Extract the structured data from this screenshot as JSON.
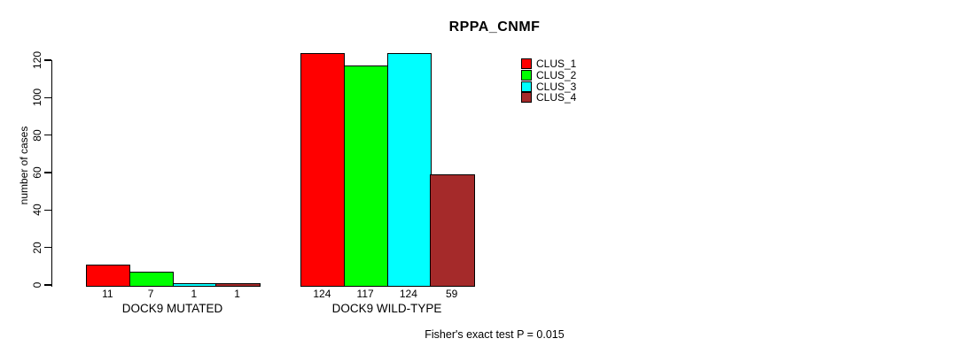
{
  "title": "RPPA_CNMF",
  "footer": "Fisher's exact test P = 0.015",
  "chart_data": {
    "type": "bar",
    "title": "RPPA_CNMF",
    "xlabel": "",
    "ylabel": "number of cases",
    "ylim": [
      0,
      130
    ],
    "yticks": [
      0,
      20,
      40,
      60,
      80,
      100,
      120
    ],
    "grid": false,
    "legend_position": "top-right",
    "bar_value_labels_shown": true,
    "categories": [
      "DOCK9 MUTATED",
      "DOCK9 WILD-TYPE"
    ],
    "series": [
      {
        "name": "CLUS_1",
        "color": "#FF0000",
        "values": [
          11,
          124
        ]
      },
      {
        "name": "CLUS_2",
        "color": "#00FF00",
        "values": [
          7,
          117
        ]
      },
      {
        "name": "CLUS_3",
        "color": "#00FFFF",
        "values": [
          1,
          124
        ]
      },
      {
        "name": "CLUS_4",
        "color": "#A52A2A",
        "values": [
          1,
          59
        ]
      }
    ],
    "annotation": "Fisher's exact test P = 0.015"
  }
}
